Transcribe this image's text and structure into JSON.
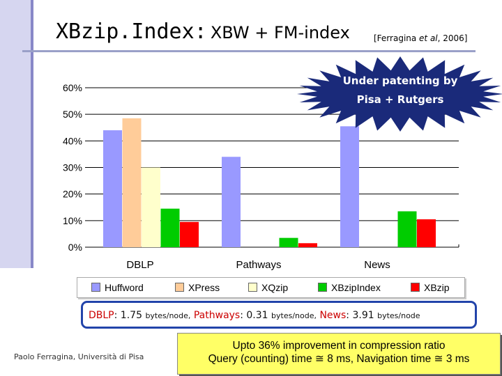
{
  "slide": {
    "title_mono": "XBzip.Index:",
    "title_rest": "XBW + FM-index",
    "cite_pre": "[Ferragina ",
    "cite_italic": "et al",
    "cite_post": ", 2006]",
    "burst_line1": "Under patenting by",
    "burst_line2": "Pisa + Rutgers",
    "burst_color": "#1a2a7a",
    "sizes": {
      "dblp_name": "DBLP",
      "dblp_value": ": 1.75",
      "dblp_unit": "bytes/node,",
      "pathways_name": "Pathways",
      "pathways_value": ": 0.31",
      "pathways_unit": "bytes/node,",
      "news_name": "News",
      "news_value": ": 3.91",
      "news_unit": "bytes/node"
    },
    "footer": "Paolo Ferragina, Università di Pisa",
    "result_line1": "Upto 36% improvement in compression ratio",
    "result_line2": "Query (counting) time ≅ 8 ms, Navigation time ≅ 3 ms"
  },
  "chart_data": {
    "type": "bar",
    "categories": [
      "DBLP",
      "Pathways",
      "News"
    ],
    "y_ticks": [
      "60%",
      "50%",
      "40%",
      "30%",
      "20%",
      "10%",
      "0%"
    ],
    "ylim": [
      0,
      60
    ],
    "legend_position": "bottom",
    "series": [
      {
        "name": "Huffword",
        "color": "#9999ff",
        "values": [
          44,
          34,
          45.5
        ]
      },
      {
        "name": "XPress",
        "color": "#ffcc99",
        "values": [
          48.5,
          null,
          null
        ]
      },
      {
        "name": "XQzip",
        "color": "#ffffcc",
        "values": [
          30,
          null,
          null
        ]
      },
      {
        "name": "XBzipIndex",
        "color": "#00cc00",
        "values": [
          14.5,
          3.5,
          13.5
        ]
      },
      {
        "name": "XBzip",
        "color": "#ff0000",
        "values": [
          9.5,
          1.5,
          10.5
        ]
      }
    ]
  }
}
